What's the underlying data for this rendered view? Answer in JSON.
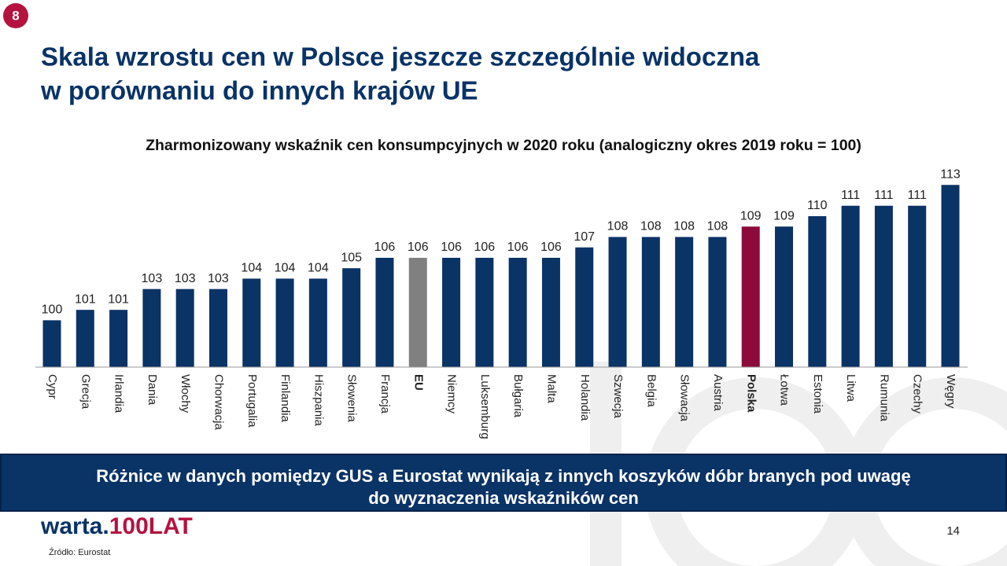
{
  "slide": {
    "number": "8",
    "title_lines": [
      "Skala wzrostu cen w Polsce jeszcze szczególnie widoczna",
      "w porównaniu do innych krajów UE"
    ],
    "banner_lines": [
      "Różnice w danych pomiędzy GUS a Eurostat wynikają z innych koszyków dóbr branych pod uwagę",
      "do wyznaczenia wskaźników cen"
    ],
    "logo": [
      "warta.",
      "100LAT"
    ],
    "page": "14",
    "source": "Źródło:  Eurostat"
  },
  "chart_data": {
    "type": "bar",
    "title": "Zharmonizowany wskaźnik cen konsumpcyjnych w 2020 roku (analogiczny okres 2019 roku = 100)",
    "categories": [
      "Cypr",
      "Grecja",
      "Irlandia",
      "Dania",
      "Włochy",
      "Chorwacja",
      "Portugalia",
      "Finlandia",
      "Hiszpania",
      "Słowenia",
      "Francja",
      "EU",
      "Niemcy",
      "Luksemburg",
      "Bułgaria",
      "Malta",
      "Holandia",
      "Szwecja",
      "Belgia",
      "Słowacja",
      "Austria",
      "Polska",
      "Łotwa",
      "Estonia",
      "Litwa",
      "Rumunia",
      "Czechy",
      "Węgry"
    ],
    "values": [
      100,
      101,
      101,
      103,
      103,
      103,
      104,
      104,
      104,
      105,
      106,
      106,
      106,
      106,
      106,
      106,
      107,
      108,
      108,
      108,
      108,
      109,
      109,
      110,
      111,
      111,
      111,
      113
    ],
    "color": "#0a3366",
    "colors": [
      "#0a3366",
      "#0a3366",
      "#0a3366",
      "#0a3366",
      "#0a3366",
      "#0a3366",
      "#0a3366",
      "#0a3366",
      "#0a3366",
      "#0a3366",
      "#0a3366",
      "#808080",
      "#0a3366",
      "#0a3366",
      "#0a3366",
      "#0a3366",
      "#0a3366",
      "#0a3366",
      "#0a3366",
      "#0a3366",
      "#0a3366",
      "#8c0b3c",
      "#0a3366",
      "#0a3366",
      "#0a3366",
      "#0a3366",
      "#0a3366",
      "#0a3366"
    ],
    "ylim": [
      95.5,
      114
    ]
  }
}
